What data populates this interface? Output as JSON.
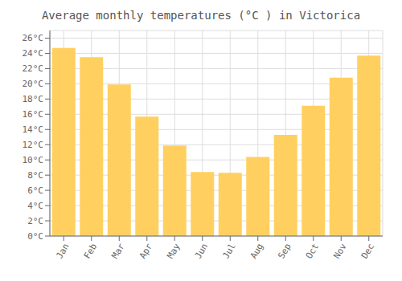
{
  "chart_data": {
    "type": "bar",
    "title": "Average monthly temperatures (°C ) in Victorica",
    "categories": [
      "Jan",
      "Feb",
      "Mar",
      "Apr",
      "May",
      "Jun",
      "Jul",
      "Aug",
      "Sep",
      "Oct",
      "Nov",
      "Dec"
    ],
    "values": [
      24.7,
      23.5,
      19.9,
      15.7,
      11.9,
      8.4,
      8.3,
      10.4,
      13.3,
      17.1,
      20.8,
      23.7
    ],
    "color": "#FFD060",
    "ylim": [
      0,
      27
    ],
    "yticks": [
      {
        "value": 0,
        "label": "0°C"
      },
      {
        "value": 2,
        "label": "2°C"
      },
      {
        "value": 4,
        "label": "4°C"
      },
      {
        "value": 6,
        "label": "6°C"
      },
      {
        "value": 8,
        "label": "8°C"
      },
      {
        "value": 10,
        "label": "10°C"
      },
      {
        "value": 12,
        "label": "12°C"
      },
      {
        "value": 14,
        "label": "14°C"
      },
      {
        "value": 16,
        "label": "16°C"
      },
      {
        "value": 18,
        "label": "18°C"
      },
      {
        "value": 20,
        "label": "20°C"
      },
      {
        "value": 22,
        "label": "22°C"
      },
      {
        "value": 24,
        "label": "24°C"
      },
      {
        "value": 26,
        "label": "26°C"
      }
    ],
    "grid": true
  }
}
